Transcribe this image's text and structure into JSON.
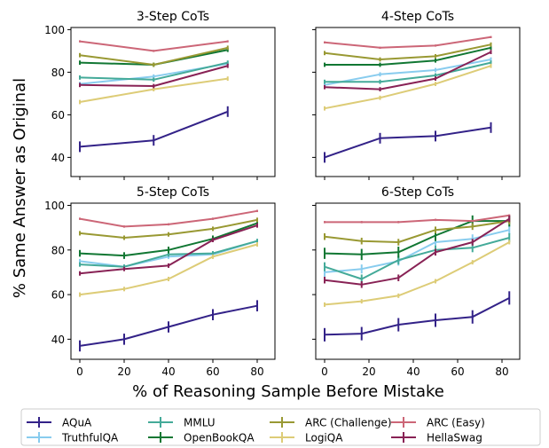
{
  "figure": {
    "ylabel": "% Same Answer as Original",
    "xlabel": "% of Reasoning Sample Before Mistake"
  },
  "series_style": [
    {
      "name": "AQuA",
      "color": "#332288"
    },
    {
      "name": "TruthfulQA",
      "color": "#88CCEE"
    },
    {
      "name": "MMLU",
      "color": "#44AA99"
    },
    {
      "name": "OpenBookQA",
      "color": "#117733"
    },
    {
      "name": "ARC (Challenge)",
      "color": "#999933"
    },
    {
      "name": "LogiQA",
      "color": "#DDCC77"
    },
    {
      "name": "ARC (Easy)",
      "color": "#CC6677"
    },
    {
      "name": "HellaSwag",
      "color": "#882255"
    }
  ],
  "chart_data": [
    {
      "type": "line",
      "title": "3-Step CoTs",
      "xlim": [
        -4,
        88
      ],
      "ylim": [
        31,
        101
      ],
      "xticks": [
        0,
        20,
        40,
        60,
        80
      ],
      "yticks": [
        40,
        60,
        80,
        100
      ],
      "x": [
        0,
        33.3,
        66.7
      ],
      "series": [
        {
          "name": "AQuA",
          "values": [
            45,
            48,
            61.5
          ],
          "err": [
            2.5,
            2.5,
            2.5
          ]
        },
        {
          "name": "TruthfulQA",
          "values": [
            74.5,
            78,
            84
          ],
          "err": [
            1,
            1,
            1
          ]
        },
        {
          "name": "MMLU",
          "values": [
            77.5,
            76.5,
            84.5
          ],
          "err": [
            1,
            1,
            1
          ]
        },
        {
          "name": "OpenBookQA",
          "values": [
            84.5,
            83.5,
            90.5
          ],
          "err": [
            1,
            1,
            1
          ]
        },
        {
          "name": "ARC (Challenge)",
          "values": [
            88,
            83.5,
            91.5
          ],
          "err": [
            1,
            1,
            1
          ]
        },
        {
          "name": "LogiQA",
          "values": [
            66,
            72,
            77
          ],
          "err": [
            1,
            1,
            1
          ]
        },
        {
          "name": "ARC (Easy)",
          "values": [
            94.5,
            90,
            94.5
          ],
          "err": [
            0.5,
            0.5,
            0.5
          ]
        },
        {
          "name": "HellaSwag",
          "values": [
            74,
            73.5,
            83
          ],
          "err": [
            1,
            1,
            1
          ]
        }
      ]
    },
    {
      "type": "line",
      "title": "4-Step CoTs",
      "xlim": [
        -4,
        88
      ],
      "ylim": [
        31,
        101
      ],
      "xticks": [
        0,
        20,
        40,
        60,
        80
      ],
      "yticks": [
        40,
        60,
        80,
        100
      ],
      "x": [
        0,
        25,
        50,
        75
      ],
      "series": [
        {
          "name": "AQuA",
          "values": [
            40,
            49,
            50,
            54
          ],
          "err": [
            2.5,
            2.5,
            2.5,
            2.5
          ]
        },
        {
          "name": "TruthfulQA",
          "values": [
            74,
            79,
            81,
            86
          ],
          "err": [
            1,
            1,
            1,
            1
          ]
        },
        {
          "name": "MMLU",
          "values": [
            75.5,
            75.5,
            78.5,
            84.5
          ],
          "err": [
            1,
            1,
            1,
            1
          ]
        },
        {
          "name": "OpenBookQA",
          "values": [
            83.5,
            83.5,
            85.5,
            91.5
          ],
          "err": [
            1,
            1,
            1,
            1
          ]
        },
        {
          "name": "ARC (Challenge)",
          "values": [
            89,
            86,
            87.5,
            93
          ],
          "err": [
            1,
            1,
            1,
            1
          ]
        },
        {
          "name": "LogiQA",
          "values": [
            63,
            68,
            74.5,
            83
          ],
          "err": [
            1,
            1,
            1,
            1
          ]
        },
        {
          "name": "ARC (Easy)",
          "values": [
            94,
            91.5,
            92.5,
            96.5
          ],
          "err": [
            0.5,
            0.5,
            0.5,
            0.5
          ]
        },
        {
          "name": "HellaSwag",
          "values": [
            73,
            72,
            77,
            89.5
          ],
          "err": [
            1,
            1,
            1,
            1
          ]
        }
      ]
    },
    {
      "type": "line",
      "title": "5-Step CoTs",
      "xlim": [
        -4,
        88
      ],
      "ylim": [
        31,
        101
      ],
      "xticks": [
        0,
        20,
        40,
        60,
        80
      ],
      "yticks": [
        40,
        60,
        80,
        100
      ],
      "x": [
        0,
        20,
        40,
        60,
        80
      ],
      "series": [
        {
          "name": "AQuA",
          "values": [
            37,
            40,
            45.5,
            51,
            55
          ],
          "err": [
            2.5,
            2.5,
            2.5,
            2.5,
            2.5
          ]
        },
        {
          "name": "TruthfulQA",
          "values": [
            75,
            72.5,
            77,
            78,
            84
          ],
          "err": [
            1,
            1,
            1,
            1,
            1
          ]
        },
        {
          "name": "MMLU",
          "values": [
            73.5,
            72.5,
            78,
            78.5,
            84
          ],
          "err": [
            1,
            1,
            1,
            1,
            1
          ]
        },
        {
          "name": "OpenBookQA",
          "values": [
            78.5,
            77.5,
            80,
            85,
            92
          ],
          "err": [
            1.5,
            1.5,
            1.5,
            1.5,
            1.5
          ]
        },
        {
          "name": "ARC (Challenge)",
          "values": [
            87.5,
            85.5,
            87,
            89.5,
            93.5
          ],
          "err": [
            1,
            1,
            1,
            1,
            1
          ]
        },
        {
          "name": "LogiQA",
          "values": [
            60,
            62.5,
            67,
            77,
            82.5
          ],
          "err": [
            1,
            1,
            1,
            1,
            1
          ]
        },
        {
          "name": "ARC (Easy)",
          "values": [
            94,
            90.5,
            91.5,
            94,
            97.5
          ],
          "err": [
            0.5,
            0.5,
            0.5,
            0.5,
            0.5
          ]
        },
        {
          "name": "HellaSwag",
          "values": [
            69.5,
            71.5,
            73,
            84.5,
            91
          ],
          "err": [
            1,
            1,
            1,
            1,
            1
          ]
        }
      ]
    },
    {
      "type": "line",
      "title": "6-Step CoTs",
      "xlim": [
        -4,
        88
      ],
      "ylim": [
        31,
        101
      ],
      "xticks": [
        0,
        20,
        40,
        60,
        80
      ],
      "yticks": [
        40,
        60,
        80,
        100
      ],
      "x": [
        0,
        16.7,
        33.3,
        50,
        66.7,
        83.3
      ],
      "series": [
        {
          "name": "AQuA",
          "values": [
            42,
            42.5,
            46.5,
            48.5,
            50,
            58.5
          ],
          "err": [
            3,
            3,
            3,
            3,
            3,
            3
          ]
        },
        {
          "name": "TruthfulQA",
          "values": [
            70,
            71.5,
            75,
            83.5,
            85,
            89
          ],
          "err": [
            2,
            2,
            2,
            2,
            2,
            2
          ]
        },
        {
          "name": "MMLU",
          "values": [
            72.5,
            67,
            75.5,
            80,
            81,
            85.5
          ],
          "err": [
            2,
            2,
            2,
            2,
            2,
            2
          ]
        },
        {
          "name": "OpenBookQA",
          "values": [
            78.5,
            78,
            79,
            86.5,
            93,
            93
          ],
          "err": [
            2.5,
            2.5,
            2.5,
            2.5,
            2.5,
            2.5
          ]
        },
        {
          "name": "ARC (Challenge)",
          "values": [
            86,
            84,
            83.5,
            89,
            90.5,
            93
          ],
          "err": [
            1.5,
            1.5,
            1.5,
            1.5,
            1.5,
            1.5
          ]
        },
        {
          "name": "LogiQA",
          "values": [
            55.5,
            57,
            59.5,
            66,
            74.5,
            83.5
          ],
          "err": [
            1,
            1,
            1,
            1,
            1,
            1
          ]
        },
        {
          "name": "ARC (Easy)",
          "values": [
            92.5,
            92.5,
            92.5,
            93.5,
            93,
            95.5
          ],
          "err": [
            0.5,
            0.5,
            0.5,
            0.5,
            0.5,
            0.5
          ]
        },
        {
          "name": "HellaSwag",
          "values": [
            66.5,
            64.5,
            67.5,
            79,
            83.5,
            94
          ],
          "err": [
            1.5,
            1.5,
            1.5,
            1.5,
            1.5,
            1.5
          ]
        }
      ]
    }
  ]
}
